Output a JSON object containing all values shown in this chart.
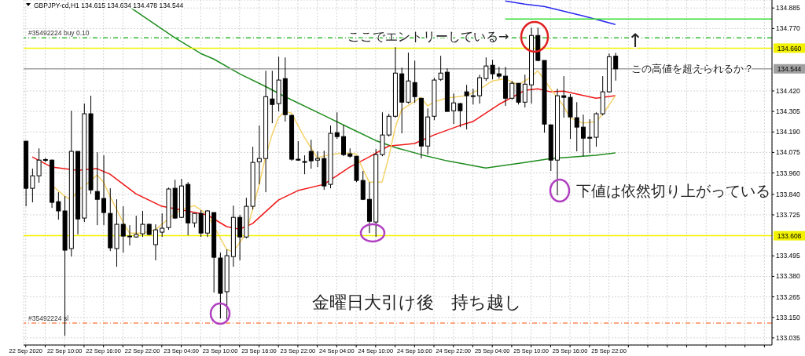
{
  "chart_data": {
    "type": "candlestick",
    "title": "GBPJPY-cd,H1  134.615 134.634 134.478 134.544",
    "annotations": [
      "ここでエントリーしている→",
      "↑",
      "この高値を超えられるか？",
      "下値は依然切り上がっている",
      "金曜日大引け後　持ち越し"
    ],
    "x": [
      "2020-09-22T04:00",
      "2020-09-22T05:00",
      "2020-09-22T06:00",
      "2020-09-22T07:00",
      "2020-09-22T08:00",
      "2020-09-22T09:00",
      "2020-09-22T10:00",
      "2020-09-22T11:00",
      "2020-09-22T12:00",
      "2020-09-22T13:00",
      "2020-09-22T14:00",
      "2020-09-22T15:00",
      "2020-09-22T16:00",
      "2020-09-22T17:00",
      "2020-09-22T18:00",
      "2020-09-22T19:00",
      "2020-09-22T20:00",
      "2020-09-22T21:00",
      "2020-09-22T22:00",
      "2020-09-22T23:00",
      "2020-09-23T00:00",
      "2020-09-23T01:00",
      "2020-09-23T02:00",
      "2020-09-23T03:00",
      "2020-09-23T04:00",
      "2020-09-23T05:00",
      "2020-09-23T06:00",
      "2020-09-23T07:00",
      "2020-09-23T08:00",
      "2020-09-23T09:00",
      "2020-09-23T10:00",
      "2020-09-23T11:00",
      "2020-09-23T12:00",
      "2020-09-23T13:00",
      "2020-09-23T14:00",
      "2020-09-23T15:00",
      "2020-09-23T16:00",
      "2020-09-23T17:00",
      "2020-09-23T18:00",
      "2020-09-23T19:00",
      "2020-09-23T20:00",
      "2020-09-23T21:00",
      "2020-09-23T22:00",
      "2020-09-23T23:00",
      "2020-09-24T00:00",
      "2020-09-24T01:00",
      "2020-09-24T02:00",
      "2020-09-24T03:00",
      "2020-09-24T04:00",
      "2020-09-24T05:00",
      "2020-09-24T06:00",
      "2020-09-24T07:00",
      "2020-09-24T08:00",
      "2020-09-24T09:00",
      "2020-09-24T10:00",
      "2020-09-24T11:00",
      "2020-09-24T12:00",
      "2020-09-24T13:00",
      "2020-09-24T14:00",
      "2020-09-24T15:00",
      "2020-09-24T16:00",
      "2020-09-24T17:00",
      "2020-09-24T18:00",
      "2020-09-24T19:00",
      "2020-09-24T20:00",
      "2020-09-24T21:00",
      "2020-09-24T22:00",
      "2020-09-24T23:00",
      "2020-09-25T00:00",
      "2020-09-25T01:00",
      "2020-09-25T02:00",
      "2020-09-25T03:00",
      "2020-09-25T04:00",
      "2020-09-25T05:00",
      "2020-09-25T06:00",
      "2020-09-25T07:00",
      "2020-09-25T08:00",
      "2020-09-25T09:00",
      "2020-09-25T10:00",
      "2020-09-25T11:00",
      "2020-09-25T12:00",
      "2020-09-25T13:00",
      "2020-09-25T14:00",
      "2020-09-25T15:00",
      "2020-09-25T16:00",
      "2020-09-25T17:00",
      "2020-09-25T18:00",
      "2020-09-25T19:00",
      "2020-09-25T20:00",
      "2020-09-25T21:00",
      "2020-09-25T22:00",
      "2020-09-25T23:00"
    ],
    "ohlc": [
      [
        134.138,
        134.14,
        133.773,
        133.874
      ],
      [
        133.874,
        133.984,
        133.795,
        133.944
      ],
      [
        133.944,
        134.098,
        133.905,
        134.032
      ],
      [
        134.032,
        134.044,
        134.02,
        134.035
      ],
      [
        134.032,
        134.035,
        133.764,
        133.795
      ],
      [
        133.799,
        133.852,
        133.698,
        133.747
      ],
      [
        133.747,
        133.83,
        133.047,
        133.527
      ],
      [
        133.536,
        134.309,
        133.491,
        134.081
      ],
      [
        134.081,
        134.081,
        133.615,
        133.702
      ],
      [
        133.707,
        134.349,
        133.685,
        134.292
      ],
      [
        134.292,
        134.393,
        133.843,
        133.865
      ],
      [
        133.856,
        134.076,
        133.667,
        133.812
      ],
      [
        133.817,
        134.059,
        133.667,
        133.738
      ],
      [
        133.733,
        133.874,
        133.522,
        133.54
      ],
      [
        133.536,
        133.812,
        133.434,
        133.672
      ],
      [
        133.672,
        133.773,
        133.513,
        133.606
      ],
      [
        133.606,
        133.667,
        133.553,
        133.606
      ],
      [
        133.601,
        133.72,
        133.597,
        133.615
      ],
      [
        133.619,
        133.747,
        133.601,
        133.672
      ],
      [
        133.672,
        133.676,
        133.61,
        133.615
      ],
      [
        133.558,
        133.672,
        133.47,
        133.641
      ],
      [
        133.628,
        133.733,
        133.601,
        133.65
      ],
      [
        133.654,
        133.878,
        133.641,
        133.87
      ],
      [
        133.874,
        133.922,
        133.702,
        133.707
      ],
      [
        133.711,
        133.927,
        133.707,
        133.887
      ],
      [
        133.896,
        133.909,
        133.61,
        133.68
      ],
      [
        133.68,
        133.733,
        133.654,
        133.733
      ],
      [
        133.733,
        133.751,
        133.601,
        133.623
      ],
      [
        133.623,
        133.751,
        133.601,
        133.747
      ],
      [
        133.738,
        133.738,
        133.289,
        133.487
      ],
      [
        133.483,
        133.513,
        133.144,
        133.285
      ],
      [
        133.294,
        133.531,
        133.14,
        133.496
      ],
      [
        133.491,
        133.777,
        133.434,
        133.711
      ],
      [
        133.711,
        133.725,
        133.47,
        133.601
      ],
      [
        133.601,
        133.821,
        133.593,
        133.773
      ],
      [
        133.773,
        134.107,
        133.755,
        134.019
      ],
      [
        134.023,
        134.226,
        133.896,
        134.041
      ],
      [
        134.041,
        134.533,
        133.852,
        134.388
      ],
      [
        134.375,
        134.533,
        134.239,
        134.344
      ],
      [
        134.349,
        134.612,
        134.305,
        134.481
      ],
      [
        134.489,
        134.608,
        134.248,
        134.287
      ],
      [
        134.283,
        134.287,
        134.028,
        134.037
      ],
      [
        134.037,
        134.138,
        134.028,
        134.032
      ],
      [
        134.024,
        134.059,
        133.953,
        134.022
      ],
      [
        134.081,
        134.146,
        133.984,
        134.028
      ],
      [
        134.032,
        134.081,
        133.993,
        134.041
      ],
      [
        134.041,
        134.085,
        133.865,
        133.887
      ],
      [
        133.896,
        134.226,
        133.874,
        134.182
      ],
      [
        134.186,
        134.3,
        134.151,
        134.164
      ],
      [
        134.164,
        134.23,
        134.054,
        134.063
      ],
      [
        134.067,
        134.098,
        134.045,
        134.054
      ],
      [
        134.054,
        134.054,
        133.909,
        133.918
      ],
      [
        133.918,
        133.971,
        133.808,
        133.812
      ],
      [
        133.812,
        133.909,
        133.623,
        133.689
      ],
      [
        133.685,
        134.094,
        133.601,
        134.063
      ],
      [
        134.063,
        134.3,
        134.054,
        134.173
      ],
      [
        134.173,
        134.292,
        134.164,
        134.278
      ],
      [
        134.278,
        134.665,
        134.27,
        134.52
      ],
      [
        134.516,
        134.551,
        134.182,
        134.357
      ],
      [
        134.357,
        134.635,
        134.349,
        134.476
      ],
      [
        134.467,
        134.59,
        134.353,
        134.388
      ],
      [
        134.379,
        134.379,
        134.041,
        134.111
      ],
      [
        134.111,
        134.322,
        134.063,
        134.274
      ],
      [
        134.278,
        134.494,
        134.256,
        134.481
      ],
      [
        134.485,
        134.617,
        134.476,
        134.52
      ],
      [
        134.525,
        134.547,
        134.305,
        134.305
      ],
      [
        134.309,
        134.406,
        134.234,
        134.353
      ],
      [
        134.349,
        134.353,
        134.217,
        134.309
      ],
      [
        134.415,
        134.454,
        134.204,
        134.393
      ],
      [
        134.393,
        134.432,
        134.344,
        134.393
      ],
      [
        134.393,
        134.511,
        134.349,
        134.494
      ],
      [
        134.489,
        134.608,
        134.476,
        134.56
      ],
      [
        134.564,
        134.595,
        134.485,
        134.516
      ],
      [
        134.516,
        134.555,
        134.489,
        134.503
      ],
      [
        134.503,
        134.555,
        134.336,
        134.379
      ],
      [
        134.379,
        134.476,
        134.371,
        134.463
      ],
      [
        134.463,
        134.463,
        134.344,
        134.357
      ],
      [
        134.357,
        134.511,
        134.327,
        134.458
      ],
      [
        134.454,
        134.775,
        134.349,
        134.731
      ],
      [
        134.731,
        134.775,
        134.586,
        134.591
      ],
      [
        134.591,
        134.591,
        134.186,
        134.234
      ],
      [
        134.23,
        134.23,
        133.971,
        134.032
      ],
      [
        134.032,
        134.432,
        133.834,
        134.393
      ],
      [
        134.393,
        134.503,
        134.27,
        134.384
      ],
      [
        134.384,
        134.402,
        134.151,
        134.274
      ],
      [
        134.27,
        134.357,
        134.081,
        134.217
      ],
      [
        134.217,
        134.287,
        134.054,
        134.155
      ],
      [
        134.16,
        134.261,
        134.072,
        134.155
      ],
      [
        134.16,
        134.3,
        134.107,
        134.292
      ],
      [
        134.292,
        134.503,
        134.283,
        134.415
      ],
      [
        134.415,
        134.63,
        134.41,
        134.612
      ],
      [
        134.615,
        134.634,
        134.478,
        134.544
      ]
    ],
    "series": [
      {
        "type": "line",
        "color": "#1e8c1e",
        "x": [
          "2020-09-22T19:00",
          "2020-09-23T03:00",
          "2020-09-23T07:00",
          "2020-09-23T09:00",
          "2020-09-23T13:00",
          "2020-09-23T17:00",
          "2020-09-23T20:00",
          "2020-09-24T02:00",
          "2020-09-24T06:00",
          "2020-09-24T10:00",
          "2020-09-24T13:00",
          "2020-09-24T17:00",
          "2020-09-24T21:00",
          "2020-09-25T03:00",
          "2020-09-25T09:00",
          "2020-09-25T13:00",
          "2020-09-25T20:00",
          "2020-09-25T23:00"
        ],
        "values": [
          134.916,
          134.718,
          134.63,
          134.599,
          134.516,
          134.445,
          134.388,
          134.283,
          134.212,
          134.142,
          134.103,
          134.063,
          134.028,
          133.988,
          134.019,
          134.041,
          134.059,
          134.072
        ]
      },
      {
        "type": "line",
        "color": "#f01818",
        "x": [
          "2020-09-22T05:00",
          "2020-09-22T08:00",
          "2020-09-22T12:00",
          "2020-09-22T15:00",
          "2020-09-22T17:00",
          "2020-09-22T21:00",
          "2020-09-23T01:00",
          "2020-09-23T05:00",
          "2020-09-23T08:00",
          "2020-09-23T11:00",
          "2020-09-23T13:00",
          "2020-09-23T15:00",
          "2020-09-23T19:00",
          "2020-09-23T22:00",
          "2020-09-24T02:00",
          "2020-09-24T06:00",
          "2020-09-24T09:00",
          "2020-09-24T12:00",
          "2020-09-24T16:00",
          "2020-09-24T19:00",
          "2020-09-24T23:00",
          "2020-09-25T01:00",
          "2020-09-25T05:00",
          "2020-09-25T09:00",
          "2020-09-25T11:00",
          "2020-09-25T13:00",
          "2020-09-25T15:00",
          "2020-09-25T20:00",
          "2020-09-25T23:00"
        ],
        "values": [
          134.05,
          133.993,
          133.975,
          133.984,
          133.953,
          133.843,
          133.773,
          133.746,
          133.725,
          133.659,
          133.645,
          133.676,
          133.808,
          133.861,
          133.896,
          133.993,
          134.05,
          134.111,
          134.125,
          134.173,
          134.226,
          134.248,
          134.344,
          134.423,
          134.432,
          134.415,
          134.419,
          134.379,
          134.393
        ]
      },
      {
        "type": "line",
        "color": "#f5d36a",
        "x": [
          "2020-09-22T08:00",
          "2020-09-22T10:00",
          "2020-09-22T11:00",
          "2020-09-22T12:00",
          "2020-09-22T14:00",
          "2020-09-22T15:00",
          "2020-09-22T16:00",
          "2020-09-22T17:00",
          "2020-09-22T19:00",
          "2020-09-22T20:00",
          "2020-09-22T22:00",
          "2020-09-23T00:00",
          "2020-09-23T02:00",
          "2020-09-23T04:00",
          "2020-09-23T06:00",
          "2020-09-23T08:00",
          "2020-09-23T11:00",
          "2020-09-23T12:00",
          "2020-09-23T14:00",
          "2020-09-23T15:00",
          "2020-09-23T16:00",
          "2020-09-23T17:00",
          "2020-09-23T18:00",
          "2020-09-23T19:00",
          "2020-09-23T20:00",
          "2020-09-23T21:00",
          "2020-09-23T23:00",
          "2020-09-24T01:00",
          "2020-09-24T03:00",
          "2020-09-24T05:00",
          "2020-09-24T07:00",
          "2020-09-24T08:00",
          "2020-09-24T09:00",
          "2020-09-24T11:00",
          "2020-09-24T12:00",
          "2020-09-24T13:00",
          "2020-09-24T14:00",
          "2020-09-24T17:00",
          "2020-09-24T18:00",
          "2020-09-24T19:00",
          "2020-09-24T21:00",
          "2020-09-25T00:00",
          "2020-09-25T02:00",
          "2020-09-25T04:00",
          "2020-09-25T06:00",
          "2020-09-25T08:00",
          "2020-09-25T10:00",
          "2020-09-25T11:00",
          "2020-09-25T12:00",
          "2020-09-25T13:00",
          "2020-09-25T15:00",
          "2020-09-25T16:00",
          "2020-09-25T18:00",
          "2020-09-25T20:00",
          "2020-09-25T21:00",
          "2020-09-25T23:00"
        ],
        "values": [
          133.892,
          133.83,
          133.808,
          133.861,
          133.914,
          133.949,
          133.909,
          133.83,
          133.685,
          133.623,
          133.623,
          133.641,
          133.702,
          133.755,
          133.777,
          133.729,
          133.531,
          133.518,
          133.619,
          133.755,
          133.892,
          134.05,
          134.173,
          134.27,
          134.305,
          134.296,
          134.16,
          134.045,
          134.063,
          134.072,
          134.067,
          133.984,
          133.909,
          133.909,
          134.045,
          134.212,
          134.314,
          134.384,
          134.336,
          134.358,
          134.38,
          134.393,
          134.428,
          134.476,
          134.489,
          134.454,
          134.498,
          134.533,
          134.485,
          134.432,
          134.336,
          134.27,
          134.239,
          134.248,
          134.287,
          134.393
        ]
      },
      {
        "type": "line",
        "color": "#2828f0",
        "x": [
          "2020-09-25T06:00",
          "2020-09-25T09:00",
          "2020-09-25T12:00",
          "2020-09-25T18:00",
          "2020-09-25T23:00"
        ],
        "values": [
          134.925,
          134.907,
          134.894,
          134.841,
          134.793
        ]
      },
      {
        "type": "line",
        "color": "#33dd33",
        "x": [
          "2020-09-25T06:00",
          "2020-09-26T23:10"
        ],
        "values": [
          134.823,
          134.823
        ]
      }
    ],
    "ref_lines": [
      {
        "axis": "y",
        "value": 134.718,
        "label": "#35492224 buy 0.10",
        "color": "#33bb33",
        "line_style": "dashed"
      },
      {
        "axis": "y",
        "value": 134.66,
        "label": "134.660",
        "color": "#f2f200",
        "line_style": "solid"
      },
      {
        "axis": "y",
        "value": 134.544,
        "label": "134.544",
        "color": "#a0a0a0",
        "line_style": "solid"
      },
      {
        "axis": "y",
        "value": 133.608,
        "label": "133.608",
        "color": "#f2f200",
        "line_style": "solid"
      },
      {
        "axis": "y",
        "value": 133.118,
        "label": "#35492224 sl",
        "color": "#ff8c5a",
        "line_style": "dashed"
      }
    ],
    "xlim": [
      "2020-09-22T03:40",
      "2020-09-26T23:10"
    ],
    "xticks": [
      {
        "value": "2020-09-22T04:00",
        "label": "22 Sep 2020"
      },
      {
        "value": "2020-09-22T07:00",
        "label": null
      },
      {
        "value": "2020-09-22T10:00",
        "label": "22 Sep 10:00"
      },
      {
        "value": "2020-09-22T13:00",
        "label": null
      },
      {
        "value": "2020-09-22T16:00",
        "label": "22 Sep 16:00"
      },
      {
        "value": "2020-09-22T19:00",
        "label": null
      },
      {
        "value": "2020-09-22T22:00",
        "label": "22 Sep 22:00"
      },
      {
        "value": "2020-09-23T01:00",
        "label": null
      },
      {
        "value": "2020-09-23T04:00",
        "label": "23 Sep 04:00"
      },
      {
        "value": "2020-09-23T07:00",
        "label": null
      },
      {
        "value": "2020-09-23T10:00",
        "label": "23 Sep 10:00"
      },
      {
        "value": "2020-09-23T13:00",
        "label": null
      },
      {
        "value": "2020-09-23T16:00",
        "label": "23 Sep 16:00"
      },
      {
        "value": "2020-09-23T19:00",
        "label": null
      },
      {
        "value": "2020-09-23T22:00",
        "label": "23 Sep 22:00"
      },
      {
        "value": "2020-09-24T01:00",
        "label": null
      },
      {
        "value": "2020-09-24T04:00",
        "label": "24 Sep 04:00"
      },
      {
        "value": "2020-09-24T07:00",
        "label": null
      },
      {
        "value": "2020-09-24T10:00",
        "label": "24 Sep 10:00"
      },
      {
        "value": "2020-09-24T13:00",
        "label": null
      },
      {
        "value": "2020-09-24T16:00",
        "label": "24 Sep 16:00"
      },
      {
        "value": "2020-09-24T19:00",
        "label": null
      },
      {
        "value": "2020-09-24T22:00",
        "label": "24 Sep 22:00"
      },
      {
        "value": "2020-09-25T01:00",
        "label": null
      },
      {
        "value": "2020-09-25T04:00",
        "label": "25 Sep 04:00"
      },
      {
        "value": "2020-09-25T07:00",
        "label": null
      },
      {
        "value": "2020-09-25T10:00",
        "label": "25 Sep 10:00"
      },
      {
        "value": "2020-09-25T13:00",
        "label": null
      },
      {
        "value": "2020-09-25T16:00",
        "label": "25 Sep 16:00"
      },
      {
        "value": "2020-09-25T19:00",
        "label": null
      },
      {
        "value": "2020-09-25T22:00",
        "label": "25 Sep 22:00"
      },
      {
        "value": "2020-09-26T01:00",
        "label": null
      },
      {
        "value": "2020-09-26T04:00",
        "label": null
      },
      {
        "value": "2020-09-26T07:00",
        "label": null
      },
      {
        "value": "2020-09-26T10:00",
        "label": null
      },
      {
        "value": "2020-09-26T13:00",
        "label": null
      },
      {
        "value": "2020-09-26T16:00",
        "label": null
      },
      {
        "value": "2020-09-26T19:00",
        "label": null
      },
      {
        "value": "2020-09-26T22:00",
        "label": null
      }
    ],
    "ylim": [
      132.995,
      134.93
    ],
    "yticks": [
      {
        "value": 134.885,
        "label": "134.885"
      },
      {
        "value": 134.77,
        "label": "134.770"
      },
      {
        "value": 134.42,
        "label": "134.420"
      },
      {
        "value": 134.305,
        "label": "134.305"
      },
      {
        "value": 134.19,
        "label": "134.190"
      },
      {
        "value": 134.075,
        "label": "134.075"
      },
      {
        "value": 133.96,
        "label": "133.960"
      },
      {
        "value": 133.84,
        "label": "133.840"
      },
      {
        "value": 133.725,
        "label": "133.725"
      },
      {
        "value": 133.495,
        "label": "133.495"
      },
      {
        "value": 133.38,
        "label": "133.380"
      },
      {
        "value": 133.265,
        "label": "133.265"
      },
      {
        "value": 133.15,
        "label": "133.150"
      },
      {
        "value": 133.035,
        "label": "133.035"
      }
    ],
    "grid": true,
    "legend": false,
    "marker": "none"
  }
}
